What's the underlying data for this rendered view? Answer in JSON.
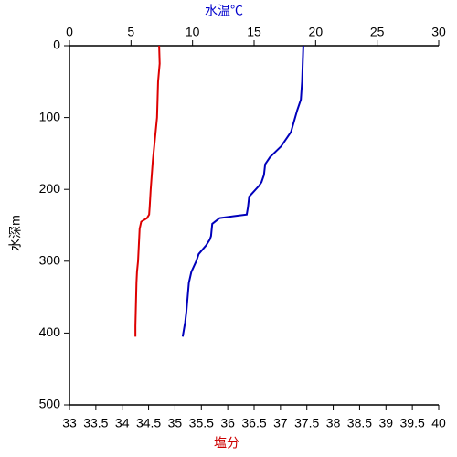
{
  "chart_data": {
    "type": "line",
    "x_label": "塩分",
    "x2_label": "水温℃",
    "y_label": "水深m",
    "xlim": [
      33,
      40
    ],
    "xticks": [
      33,
      33.5,
      34,
      34.5,
      35,
      35.5,
      36,
      36.5,
      37,
      37.5,
      38,
      38.5,
      39,
      39.5,
      40
    ],
    "x2lim": [
      0,
      30
    ],
    "x2ticks": [
      0,
      5,
      10,
      15,
      20,
      25,
      30
    ],
    "ylim": [
      500,
      0
    ],
    "yticks": [
      0,
      100,
      200,
      300,
      400,
      500
    ],
    "x_label_color": "#cc0000",
    "x2_label_color": "#0000cc",
    "series": [
      {
        "color": "#dd0000",
        "axis": "x",
        "x": [
          34.7,
          34.71,
          34.68,
          34.66,
          34.62,
          34.58,
          34.54,
          34.52,
          34.51,
          34.47,
          34.36,
          34.33,
          34.32,
          34.31,
          34.3,
          34.28,
          34.27,
          34.26,
          34.25,
          34.25
        ],
        "y": [
          0,
          25,
          50,
          100,
          130,
          160,
          200,
          225,
          235,
          240,
          245,
          255,
          270,
          285,
          300,
          315,
          330,
          360,
          390,
          405
        ]
      },
      {
        "color": "#0000bb",
        "axis": "x2",
        "x": [
          19.0,
          18.9,
          18.8,
          18.5,
          18.0,
          17.2,
          16.3,
          15.9,
          15.8,
          15.6,
          15.4,
          14.6,
          14.5,
          14.4,
          13.5,
          12.2,
          11.6,
          11.5,
          11.4,
          11.1,
          10.5,
          10.3,
          9.9,
          9.7,
          9.6,
          9.5,
          9.4,
          9.3,
          9.2
        ],
        "y": [
          0,
          50,
          75,
          90,
          120,
          140,
          155,
          165,
          180,
          190,
          195,
          210,
          225,
          235,
          237,
          240,
          248,
          265,
          270,
          278,
          290,
          300,
          315,
          330,
          350,
          370,
          385,
          395,
          405
        ]
      }
    ]
  }
}
